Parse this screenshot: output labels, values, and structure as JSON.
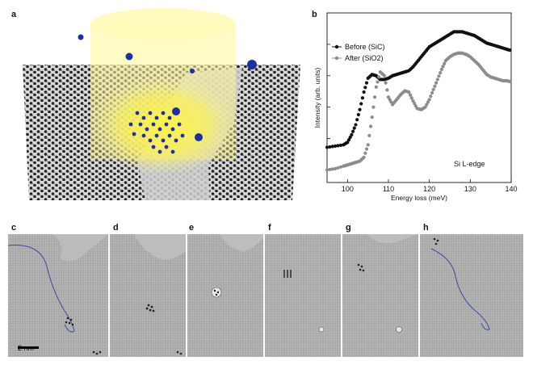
{
  "panels": {
    "a": "a",
    "b": "b",
    "c": "c",
    "d": "d",
    "e": "e",
    "f": "f",
    "g": "g",
    "h": "h"
  },
  "scale_bar": "2 nm",
  "chart_data": {
    "type": "scatter",
    "xlabel": "Energy loss (meV)",
    "ylabel": "Intensity (arb. units)",
    "xlim": [
      95,
      140
    ],
    "xticks": [
      100,
      110,
      120,
      130,
      140
    ],
    "annotation": "Si L-edge",
    "legend_position": "top-left",
    "series": [
      {
        "name": "Before (SiC)",
        "color": "#111111",
        "x": [
          95,
          97,
          99,
          100,
          101,
          102,
          103,
          104,
          105,
          106,
          107,
          108,
          109,
          110,
          111,
          112,
          113,
          114,
          115,
          116,
          117,
          118,
          119,
          120,
          121,
          122,
          123,
          124,
          125,
          126,
          127,
          128,
          129,
          130,
          131,
          132,
          133,
          134,
          135,
          136,
          137,
          138,
          139,
          140
        ],
        "y": [
          0.18,
          0.19,
          0.2,
          0.22,
          0.28,
          0.36,
          0.48,
          0.62,
          0.73,
          0.76,
          0.75,
          0.72,
          0.72,
          0.73,
          0.75,
          0.76,
          0.77,
          0.78,
          0.79,
          0.82,
          0.86,
          0.9,
          0.94,
          0.98,
          1.0,
          1.02,
          1.04,
          1.06,
          1.08,
          1.1,
          1.1,
          1.1,
          1.09,
          1.08,
          1.07,
          1.05,
          1.03,
          1.01,
          1.0,
          0.99,
          0.98,
          0.97,
          0.96,
          0.95
        ]
      },
      {
        "name": "After (SiO2)",
        "color": "#8c8c8c",
        "x": [
          95,
          97,
          99,
          100,
          101,
          102,
          103,
          104,
          105,
          106,
          107,
          108,
          109,
          110,
          111,
          112,
          113,
          114,
          115,
          116,
          117,
          118,
          119,
          120,
          121,
          122,
          123,
          124,
          125,
          126,
          127,
          128,
          129,
          130,
          131,
          132,
          133,
          134,
          135,
          136,
          137,
          138,
          139,
          140
        ],
        "y": [
          0.0,
          0.01,
          0.03,
          0.04,
          0.05,
          0.06,
          0.07,
          0.1,
          0.2,
          0.42,
          0.66,
          0.78,
          0.75,
          0.58,
          0.52,
          0.56,
          0.6,
          0.63,
          0.62,
          0.55,
          0.49,
          0.48,
          0.5,
          0.56,
          0.64,
          0.72,
          0.8,
          0.87,
          0.9,
          0.92,
          0.93,
          0.93,
          0.92,
          0.9,
          0.87,
          0.84,
          0.8,
          0.76,
          0.74,
          0.73,
          0.72,
          0.71,
          0.71,
          0.7
        ]
      }
    ]
  }
}
